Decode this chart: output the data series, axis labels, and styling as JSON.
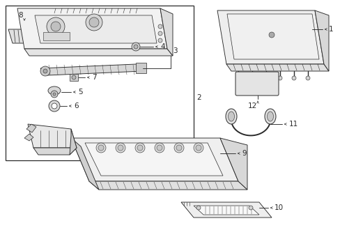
{
  "background_color": "#ffffff",
  "line_color": "#2a2a2a",
  "figsize": [
    4.89,
    3.6
  ],
  "dpi": 100,
  "lw": 0.65
}
